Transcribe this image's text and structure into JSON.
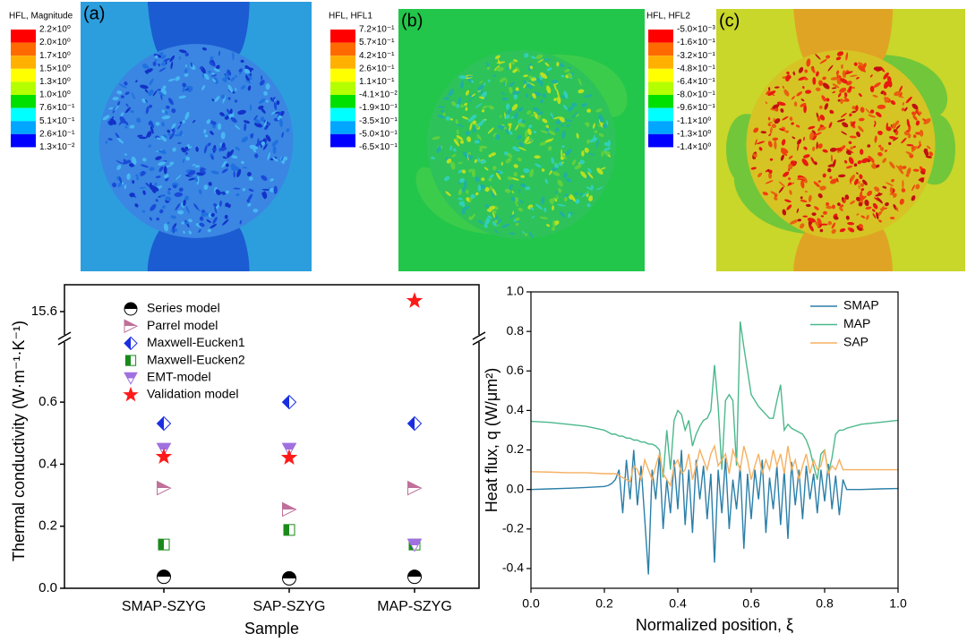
{
  "colormap": [
    "#ff0000",
    "#ff6a00",
    "#ffb000",
    "#ffff00",
    "#b4ff00",
    "#00e000",
    "#00ffff",
    "#00a6ff",
    "#0000ff"
  ],
  "panels": [
    {
      "label": "(a)",
      "legend_title": "HFL, Magnitude",
      "legend_labels": [
        "2.2×10⁰",
        "2.0×10⁰",
        "1.7×10⁰",
        "1.5×10⁰",
        "1.3×10⁰",
        "1.0×10⁰",
        "7.6×10⁻¹",
        "5.1×10⁻¹",
        "2.6×10⁻¹",
        "1.3×10⁻²"
      ]
    },
    {
      "label": "(b)",
      "legend_title": "HFL, HFL1",
      "legend_labels": [
        "7.2×10⁻¹",
        "5.7×10⁻¹",
        "4.2×10⁻¹",
        "2.6×10⁻¹",
        "1.1×10⁻¹",
        "-4.1×10⁻²",
        "-1.9×10⁻¹",
        "-3.5×10⁻¹",
        "-5.0×10⁻¹",
        "-6.5×10⁻¹"
      ]
    },
    {
      "label": "(c)",
      "legend_title": "HFL, HFL2",
      "legend_labels": [
        "-5.0×10⁻³",
        "-1.6×10⁻¹",
        "-3.2×10⁻¹",
        "-4.8×10⁻¹",
        "-6.4×10⁻¹",
        "-8.0×10⁻¹",
        "-9.6×10⁻¹",
        "-1.1×10⁰",
        "-1.3×10⁰",
        "-1.4×10⁰"
      ]
    }
  ],
  "chart_data": [
    {
      "type": "scatter",
      "x_label": "Sample",
      "y_label": "Thermal conductivity (W·m⁻¹·K⁻¹)",
      "categories": [
        "SMAP-SZYG",
        "SAP-SZYG",
        "MAP-SZYG"
      ],
      "ylim": [
        0,
        0.785
      ],
      "yticks": [
        {
          "value": 0,
          "label": "0.0"
        },
        {
          "value": 0.2,
          "label": "0.2"
        },
        {
          "value": 0.4,
          "label": "0.4"
        },
        {
          "value": 0.6,
          "label": "0.6"
        }
      ],
      "ylim_upper": [
        15.52,
        15.7
      ],
      "yticks_upper": [
        15.6
      ],
      "axis_break": true,
      "series": [
        {
          "name": "Series model",
          "color": "#000000",
          "marker": "half-circle",
          "values": [
            0.037,
            0.032,
            0.037
          ]
        },
        {
          "name": "Parrel model",
          "color": "#c0709a",
          "marker": "half-triangle-right",
          "values": [
            0.323,
            0.254,
            0.323
          ]
        },
        {
          "name": "Maxwell-Eucken1",
          "color": "#1a2ee0",
          "marker": "half-diamond",
          "values": [
            0.531,
            0.6,
            0.531
          ]
        },
        {
          "name": "Maxwell-Eucken2",
          "color": "#1a8a1a",
          "marker": "half-square",
          "values": [
            0.141,
            0.188,
            0.141
          ]
        },
        {
          "name": "EMT-model",
          "color": "#a070e0",
          "marker": "half-triangle-down",
          "values": [
            0.45,
            0.45,
            0.141
          ]
        },
        {
          "name": "Validation model",
          "color": "#ff1a1a",
          "marker": "star",
          "values": [
            0.424,
            0.421,
            15.64
          ]
        }
      ]
    },
    {
      "type": "line",
      "x_label": "Normalized position, ξ",
      "y_label": "Heat flux, q (W/μm²)",
      "xlim": [
        0,
        1
      ],
      "xticks": [
        {
          "value": 0,
          "label": "0.0"
        },
        {
          "value": 0.2,
          "label": "0.2"
        },
        {
          "value": 0.4,
          "label": "0.4"
        },
        {
          "value": 0.6,
          "label": "0.6"
        },
        {
          "value": 0.8,
          "label": "0.8"
        },
        {
          "value": 1,
          "label": "1.0"
        }
      ],
      "ylim": [
        -0.5,
        1.0
      ],
      "yticks": [
        {
          "value": -0.4,
          "label": "-0.4"
        },
        {
          "value": -0.2,
          "label": "-0.2"
        },
        {
          "value": 0,
          "label": "0.0"
        },
        {
          "value": 0.2,
          "label": "0.2"
        },
        {
          "value": 0.4,
          "label": "0.4"
        },
        {
          "value": 0.6,
          "label": "0.6"
        },
        {
          "value": 0.8,
          "label": "0.8"
        },
        {
          "value": 1,
          "label": "1.0"
        }
      ],
      "legend": "upper right",
      "x": [
        0,
        0.05,
        0.1,
        0.15,
        0.2,
        0.21,
        0.22,
        0.23,
        0.24,
        0.25,
        0.26,
        0.27,
        0.28,
        0.29,
        0.3,
        0.31,
        0.32,
        0.33,
        0.34,
        0.35,
        0.36,
        0.37,
        0.38,
        0.39,
        0.4,
        0.41,
        0.42,
        0.43,
        0.44,
        0.45,
        0.46,
        0.47,
        0.48,
        0.49,
        0.5,
        0.51,
        0.52,
        0.53,
        0.54,
        0.55,
        0.56,
        0.57,
        0.58,
        0.59,
        0.6,
        0.61,
        0.62,
        0.63,
        0.64,
        0.65,
        0.66,
        0.67,
        0.68,
        0.69,
        0.7,
        0.71,
        0.72,
        0.73,
        0.74,
        0.75,
        0.76,
        0.77,
        0.78,
        0.79,
        0.8,
        0.81,
        0.82,
        0.83,
        0.84,
        0.85,
        0.86,
        0.9,
        0.95,
        1
      ],
      "series": [
        {
          "name": "SMAP",
          "color": "#2b7fa8",
          "values": [
            0,
            0.003,
            0.006,
            0.01,
            0.015,
            0.02,
            0.03,
            0.05,
            0.1,
            -0.12,
            0.15,
            -0.05,
            0.2,
            -0.08,
            0.12,
            -0.15,
            -0.43,
            0.1,
            -0.05,
            0.18,
            -0.2,
            0.05,
            -0.12,
            0.15,
            -0.1,
            0.2,
            -0.18,
            0.1,
            -0.22,
            0.15,
            -0.05,
            0.12,
            -0.15,
            0.08,
            -0.37,
            0.1,
            -0.12,
            0.16,
            -0.2,
            0.05,
            -0.1,
            0.12,
            -0.3,
            0.08,
            -0.15,
            0.1,
            -0.05,
            0.15,
            -0.22,
            0.06,
            -0.1,
            0.12,
            -0.18,
            0.1,
            -0.25,
            0.14,
            -0.08,
            0.1,
            -0.15,
            0.12,
            -0.05,
            0.08,
            -0.12,
            0.1,
            -0.06,
            0.13,
            -0.1,
            0.07,
            -0.13,
            0.05,
            0,
            0,
            0.003,
            0.005
          ]
        },
        {
          "name": "MAP",
          "color": "#4cb88c",
          "values": [
            0.345,
            0.34,
            0.33,
            0.32,
            0.3,
            0.29,
            0.28,
            0.28,
            0.27,
            0.27,
            0.26,
            0.26,
            0.25,
            0.25,
            0.24,
            0.24,
            0.23,
            0.23,
            0.22,
            0.2,
            0.06,
            0.3,
            0.1,
            0.35,
            0.4,
            0.38,
            0.3,
            0.35,
            0.22,
            0.28,
            0.32,
            0.35,
            0.36,
            0.4,
            0.63,
            0.42,
            0.1,
            0.45,
            0.48,
            0.45,
            0.12,
            0.85,
            0.72,
            0.6,
            0.48,
            0.45,
            0.42,
            0.4,
            0.38,
            0.36,
            0.36,
            0.45,
            0.53,
            0.3,
            0.33,
            0.31,
            0.3,
            0.29,
            0.28,
            0.25,
            0.2,
            0.12,
            0.05,
            0.18,
            0.2,
            0.08,
            0.16,
            0.28,
            0.3,
            0.3,
            0.31,
            0.33,
            0.34,
            0.35
          ]
        },
        {
          "name": "SAP",
          "color": "#f5b060",
          "values": [
            0.09,
            0.088,
            0.085,
            0.085,
            0.08,
            0.08,
            0.08,
            0.08,
            0.07,
            0.06,
            0.05,
            0.04,
            0.12,
            0.1,
            0.05,
            0.15,
            0.1,
            0.05,
            0.12,
            0.18,
            0.08,
            0.05,
            0.02,
            0.12,
            0.15,
            0.08,
            0.1,
            0.18,
            0.05,
            0.12,
            0.2,
            0.15,
            0.1,
            0.18,
            0.22,
            0.12,
            0.15,
            0.18,
            0.08,
            0.2,
            0.15,
            0.1,
            0.22,
            0.15,
            0.05,
            0.12,
            0.18,
            0.08,
            0.15,
            0.1,
            0.2,
            0.12,
            0.18,
            0.08,
            0.22,
            0.1,
            0.15,
            0.05,
            0.12,
            0.18,
            0.08,
            0.15,
            0.1,
            0.12,
            0.2,
            0.08,
            0.12,
            0.1,
            0.15,
            0.1,
            0.1,
            0.1,
            0.1,
            0.1
          ]
        }
      ]
    }
  ]
}
